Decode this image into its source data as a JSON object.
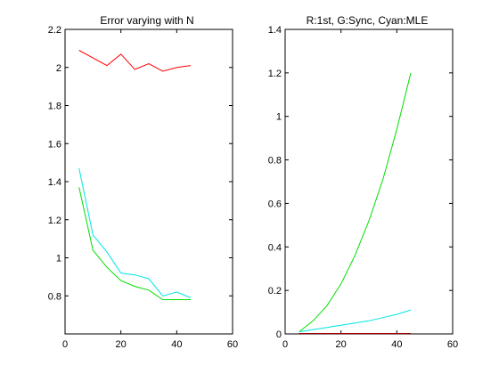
{
  "chart_data": [
    {
      "type": "line",
      "title": "Error varying with N",
      "xlabel": "",
      "ylabel": "",
      "xlim": [
        0,
        60
      ],
      "ylim": [
        0.6,
        2.2
      ],
      "xticks": [
        0,
        20,
        40,
        60
      ],
      "yticks": [
        0.8,
        1,
        1.2,
        1.4,
        1.6,
        1.8,
        2,
        2.2
      ],
      "xtick_labels": [
        "0",
        "20",
        "40",
        "60"
      ],
      "ytick_labels": [
        "0.8",
        "1",
        "1.2",
        "1.4",
        "1.6",
        "1.8",
        "2",
        "2.2"
      ],
      "grid": false,
      "series": [
        {
          "color": "#ff0000",
          "x": [
            5,
            10,
            15,
            20,
            25,
            30,
            35,
            40,
            45
          ],
          "y": [
            2.09,
            2.05,
            2.01,
            2.07,
            1.99,
            2.02,
            1.98,
            2.0,
            2.01
          ]
        },
        {
          "color": "#00e5e5",
          "x": [
            5,
            10,
            15,
            20,
            25,
            30,
            35,
            40,
            45
          ],
          "y": [
            1.47,
            1.12,
            1.03,
            0.92,
            0.91,
            0.89,
            0.8,
            0.82,
            0.79
          ]
        },
        {
          "color": "#00dd00",
          "x": [
            5,
            10,
            15,
            20,
            25,
            30,
            35,
            40,
            45
          ],
          "y": [
            1.37,
            1.04,
            0.95,
            0.88,
            0.85,
            0.83,
            0.78,
            0.78,
            0.78
          ]
        }
      ]
    },
    {
      "type": "line",
      "title": "R:1st, G:Sync, Cyan:MLE",
      "xlabel": "",
      "ylabel": "",
      "xlim": [
        0,
        60
      ],
      "ylim": [
        0,
        1.4
      ],
      "xticks": [
        0,
        20,
        40,
        60
      ],
      "yticks": [
        0,
        0.2,
        0.4,
        0.6,
        0.8,
        1,
        1.2,
        1.4
      ],
      "xtick_labels": [
        "0",
        "20",
        "40",
        "60"
      ],
      "ytick_labels": [
        "0",
        "0.2",
        "0.4",
        "0.6",
        "0.8",
        "1",
        "1.2",
        "1.4"
      ],
      "grid": false,
      "series": [
        {
          "color": "#00dd00",
          "x": [
            5,
            10,
            15,
            20,
            25,
            30,
            35,
            40,
            45
          ],
          "y": [
            0.01,
            0.06,
            0.13,
            0.23,
            0.36,
            0.52,
            0.71,
            0.94,
            1.2
          ]
        },
        {
          "color": "#00e5e5",
          "x": [
            5,
            10,
            15,
            20,
            25,
            30,
            35,
            40,
            45
          ],
          "y": [
            0.01,
            0.02,
            0.03,
            0.04,
            0.05,
            0.06,
            0.075,
            0.09,
            0.11
          ]
        },
        {
          "color": "#ff0000",
          "x": [
            5,
            10,
            15,
            20,
            25,
            30,
            35,
            40,
            45
          ],
          "y": [
            0.002,
            0.002,
            0.002,
            0.002,
            0.002,
            0.002,
            0.002,
            0.002,
            0.002
          ]
        },
        {
          "color": "#800000",
          "x": [
            5,
            10,
            15,
            20,
            25,
            30,
            35,
            40,
            45
          ],
          "y": [
            0.001,
            0.001,
            0.001,
            0.001,
            0.001,
            0.001,
            0.001,
            0.001,
            0.001
          ]
        }
      ]
    }
  ]
}
